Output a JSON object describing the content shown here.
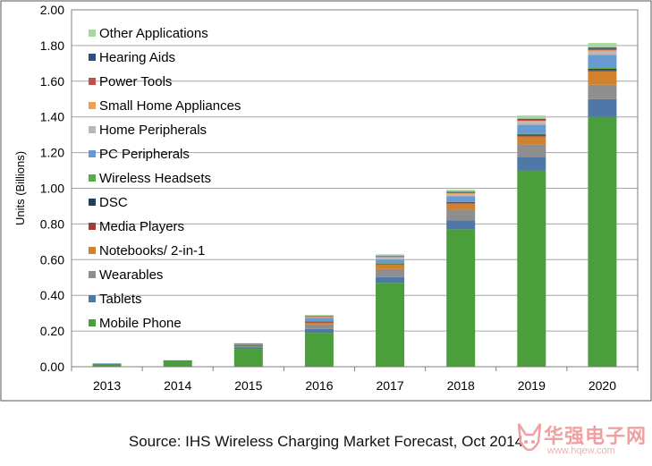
{
  "chart_data": {
    "type": "bar",
    "stacked": true,
    "title": "",
    "xlabel": "",
    "ylabel": "Units (Billions)",
    "ylim": [
      0,
      2.0
    ],
    "yticks": [
      "0.00",
      "0.20",
      "0.40",
      "0.60",
      "0.80",
      "1.00",
      "1.20",
      "1.40",
      "1.60",
      "1.80",
      "2.00"
    ],
    "grid": true,
    "legend_position": "top-left",
    "categories": [
      "2013",
      "2014",
      "2015",
      "2016",
      "2017",
      "2018",
      "2019",
      "2020"
    ],
    "series": [
      {
        "name": "Mobile Phone",
        "color": "#4a9e3c",
        "values": [
          0.017,
          0.035,
          0.1,
          0.19,
          0.47,
          0.77,
          1.1,
          1.4
        ]
      },
      {
        "name": "Tablets",
        "color": "#4f77a8",
        "values": [
          0.001,
          0.001,
          0.008,
          0.022,
          0.032,
          0.05,
          0.075,
          0.1
        ]
      },
      {
        "name": "Wearables",
        "color": "#8e8e8e",
        "values": [
          0,
          0,
          0.007,
          0.025,
          0.045,
          0.06,
          0.07,
          0.08
        ]
      },
      {
        "name": "Notebooks/ 2-in-1",
        "color": "#d0812e",
        "values": [
          0,
          0,
          0.002,
          0.012,
          0.025,
          0.035,
          0.045,
          0.075
        ]
      },
      {
        "name": "Media Players",
        "color": "#9e3d3a",
        "values": [
          0,
          0,
          0.001,
          0.002,
          0.003,
          0.004,
          0.005,
          0.006
        ]
      },
      {
        "name": "DSC",
        "color": "#233e60",
        "values": [
          0,
          0,
          0.001,
          0.002,
          0.003,
          0.004,
          0.006,
          0.008
        ]
      },
      {
        "name": "Wireless Headsets",
        "color": "#58ad48",
        "values": [
          0,
          0,
          0.001,
          0.002,
          0.003,
          0.004,
          0.006,
          0.008
        ]
      },
      {
        "name": "PC Peripherals",
        "color": "#6a9bd0",
        "values": [
          0,
          0,
          0.006,
          0.018,
          0.02,
          0.028,
          0.05,
          0.07
        ]
      },
      {
        "name": "Home Peripherals",
        "color": "#b8b8b8",
        "values": [
          0,
          0,
          0.001,
          0.005,
          0.01,
          0.012,
          0.015,
          0.018
        ]
      },
      {
        "name": "Small Home Appliances",
        "color": "#f0a050",
        "values": [
          0,
          0,
          0.001,
          0.002,
          0.004,
          0.005,
          0.006,
          0.008
        ]
      },
      {
        "name": "Power Tools",
        "color": "#c0504d",
        "values": [
          0,
          0,
          0.001,
          0.002,
          0.003,
          0.004,
          0.006,
          0.008
        ]
      },
      {
        "name": "Hearing Aids",
        "color": "#2e4f80",
        "values": [
          0,
          0,
          0.001,
          0.002,
          0.003,
          0.004,
          0.006,
          0.008
        ]
      },
      {
        "name": "Other Applications",
        "color": "#a8d8a0",
        "values": [
          0,
          0,
          0.002,
          0.006,
          0.009,
          0.012,
          0.018,
          0.025
        ]
      }
    ]
  },
  "source": "Source: IHS Wireless Charging Market Forecast, Oct 2014",
  "watermark": {
    "title": "华强电子网",
    "url": "www.hqew.com",
    "colors": {
      "accent": "#e06070"
    },
    "icon": "fox-logo-icon"
  }
}
